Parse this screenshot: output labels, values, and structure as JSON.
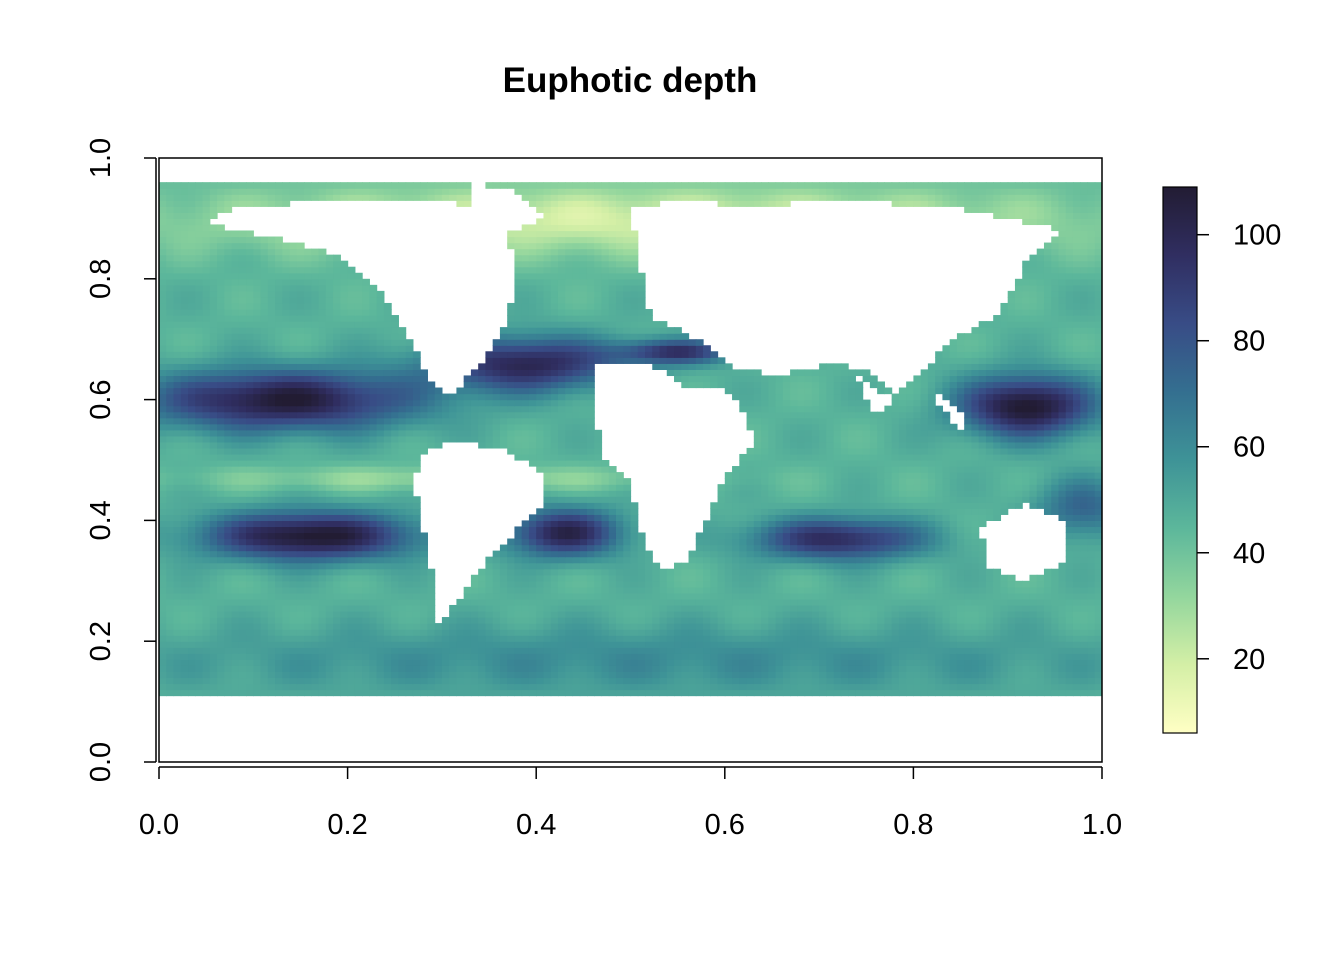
{
  "chart_data": {
    "type": "heatmap",
    "title": "Euphotic depth",
    "xlabel": "",
    "ylabel": "",
    "xlim": [
      0,
      1
    ],
    "ylim": [
      0,
      1
    ],
    "x_ticks": [
      "0.0",
      "0.2",
      "0.4",
      "0.6",
      "0.8",
      "1.0"
    ],
    "y_ticks": [
      "0.0",
      "0.2",
      "0.4",
      "0.6",
      "0.8",
      "1.0"
    ],
    "colorbar": {
      "range": [
        6,
        109
      ],
      "ticks": [
        "20",
        "40",
        "60",
        "80",
        "100"
      ],
      "tick_values": [
        20,
        40,
        60,
        80,
        100
      ],
      "colors": [
        "#ffffc4",
        "#d4efa6",
        "#93d69d",
        "#5cb79b",
        "#3e9397",
        "#346f90",
        "#384c86",
        "#302e61",
        "#221c33"
      ]
    },
    "legend": "right",
    "grid": false,
    "land_color": "#ffffff",
    "data_coverage_y": [
      0.11,
      0.96
    ]
  }
}
